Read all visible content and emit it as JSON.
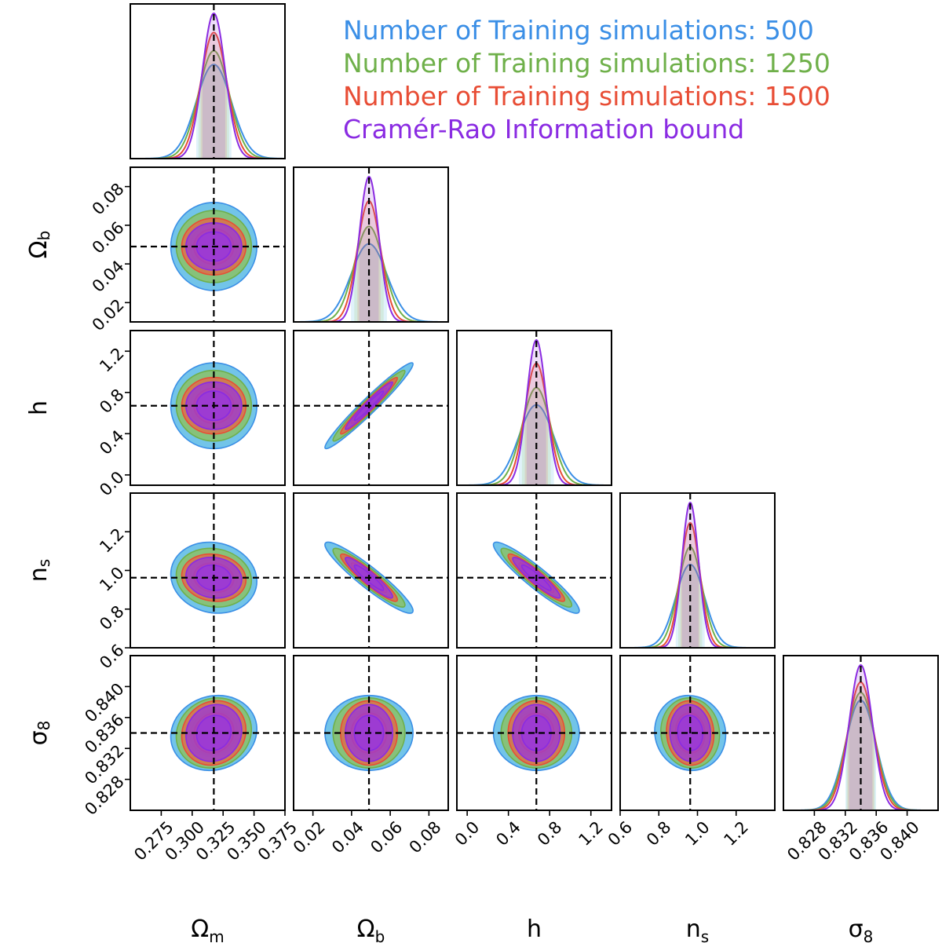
{
  "chart_data": {
    "type": "corner",
    "title": "",
    "parameters": [
      {
        "label": "Ωm",
        "fiducial": 0.3175,
        "range": [
          0.25,
          0.375
        ],
        "ticks": [
          0.275,
          0.3,
          0.325,
          0.35,
          0.375
        ],
        "tick_labels": [
          "0.275",
          "0.300",
          "0.325",
          "0.350",
          "0.375"
        ],
        "sigma": [
          0.0142,
          0.0124,
          0.0106,
          0.0092
        ]
      },
      {
        "label": "Ωb",
        "fiducial": 0.049,
        "range": [
          0.01,
          0.09
        ],
        "ticks": [
          0.02,
          0.04,
          0.06,
          0.08
        ],
        "tick_labels": [
          "0.02",
          "0.04",
          "0.06",
          "0.08"
        ],
        "sigma": [
          0.0093,
          0.0076,
          0.006,
          0.005
        ]
      },
      {
        "label": "h",
        "fiducial": 0.6711,
        "range": [
          -0.1,
          1.4
        ],
        "ticks": [
          0.0,
          0.4,
          0.8,
          1.2
        ],
        "tick_labels": [
          "0.0",
          "0.4",
          "0.8",
          "1.2"
        ],
        "extra_tick_labels": [
          {
            "value": 0.0,
            "text": "0.0"
          },
          {
            "value": 0.4,
            "text": "0.4"
          },
          {
            "value": 0.8,
            "text": "0.8"
          },
          {
            "value": 1.2,
            "text": "1.2"
          }
        ],
        "sigma": [
          0.17,
          0.14,
          0.112,
          0.094
        ]
      },
      {
        "label": "ns",
        "fiducial": 0.9624,
        "range": [
          0.6,
          1.4
        ],
        "ticks": [
          0.6,
          0.8,
          1.0,
          1.2
        ],
        "tick_labels": [
          "0.6",
          "0.8",
          "1.0",
          "1.2"
        ],
        "sigma": [
          0.075,
          0.062,
          0.05,
          0.043
        ]
      },
      {
        "label": "σ8",
        "fiducial": 0.834,
        "range": [
          0.824,
          0.844
        ],
        "ticks": [
          0.828,
          0.832,
          0.836,
          0.84
        ],
        "tick_labels": [
          "0.828",
          "0.832",
          "0.836",
          "0.840"
        ],
        "sigma": [
          0.00198,
          0.00185,
          0.0017,
          0.0015
        ]
      }
    ],
    "extra_ytick_labels": {
      "row4": "0.6"
    },
    "correlations": {
      "1_2": 0.97,
      "1_3": -0.93,
      "2_3": -0.93,
      "0_1": 0.0,
      "0_2": 0.0,
      "0_3": -0.1,
      "0_4": 0.1,
      "1_4": 0.0,
      "2_4": 0.0,
      "3_4": -0.05
    },
    "series": [
      {
        "name": "Number of Training simulations: 500",
        "color": "#3b8fe6",
        "fill": "#4ab3e3"
      },
      {
        "name": "Number of Training simulations: 1250",
        "color": "#6fb04a",
        "fill": "#8cc25c"
      },
      {
        "name": "Number of Training simulations: 1500",
        "color": "#e84d35",
        "fill": "#e56a45"
      },
      {
        "name": "Cramér-Rao Information bound",
        "color": "#8a2be2",
        "fill": "#9b3ad6"
      }
    ]
  }
}
